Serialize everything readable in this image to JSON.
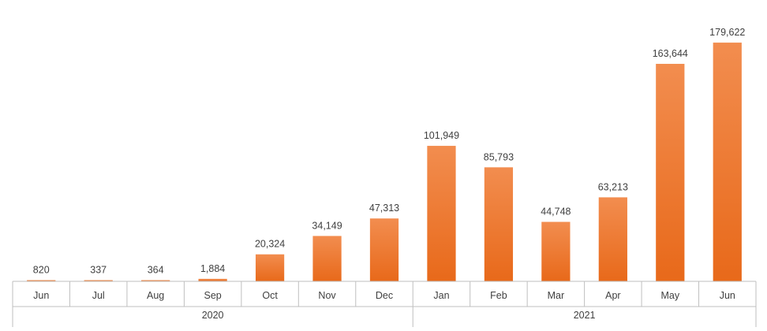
{
  "chart_data": {
    "type": "bar",
    "title": "",
    "xlabel": "",
    "ylabel": "",
    "categories": [
      "Jun",
      "Jul",
      "Aug",
      "Sep",
      "Oct",
      "Nov",
      "Dec",
      "Jan",
      "Feb",
      "Mar",
      "Apr",
      "May",
      "Jun"
    ],
    "values": [
      820,
      337,
      364,
      1884,
      20324,
      34149,
      47313,
      101949,
      85793,
      44748,
      63213,
      163644,
      179622
    ],
    "value_labels": [
      "820",
      "337",
      "364",
      "1,884",
      "20,324",
      "34,149",
      "47,313",
      "101,949",
      "85,793",
      "44,748",
      "63,213",
      "163,644",
      "179,622"
    ],
    "groups": [
      {
        "label": "2020",
        "start": 0,
        "end": 6
      },
      {
        "label": "2021",
        "start": 7,
        "end": 12
      }
    ],
    "ylim": [
      0,
      185000
    ],
    "grid": false,
    "legend": "none",
    "colors": {
      "bar_top": "#f28d4f",
      "bar_bottom": "#e8691a",
      "axis": "#bfbfbf",
      "text": "#404040"
    }
  }
}
